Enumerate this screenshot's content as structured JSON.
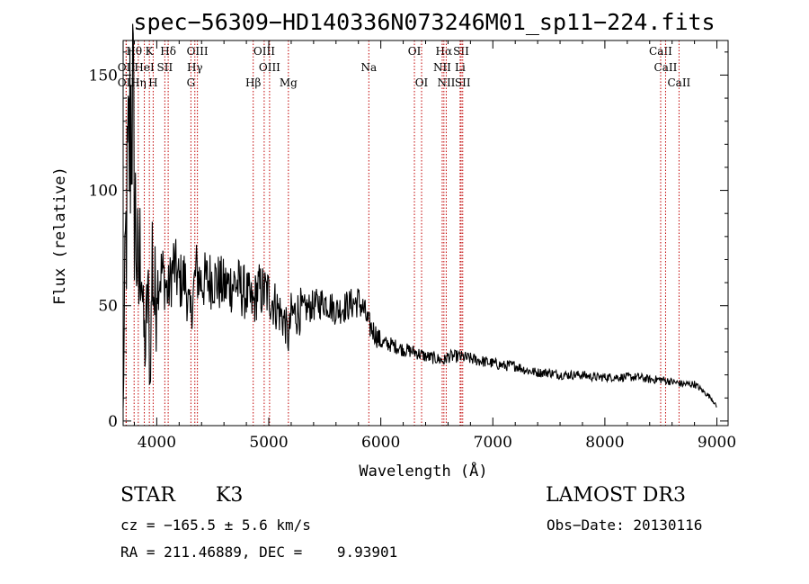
{
  "chart_data": {
    "type": "line",
    "title": "spec−56309−HD140336N073246M01_sp11−224.fits",
    "xlabel": "Wavelength (Å)",
    "ylabel": "Flux (relative)",
    "xlim": [
      3700,
      9100
    ],
    "ylim": [
      -2,
      165
    ],
    "xticks": [
      4000,
      5000,
      6000,
      7000,
      8000,
      9000
    ],
    "yticks": [
      0,
      50,
      100,
      150
    ],
    "grid": false,
    "series": [
      {
        "name": "flux",
        "x": [
          3700,
          3720,
          3740,
          3760,
          3780,
          3800,
          3820,
          3840,
          3860,
          3880,
          3900,
          3920,
          3940,
          3960,
          3980,
          4000,
          4050,
          4100,
          4150,
          4200,
          4250,
          4300,
          4350,
          4400,
          4500,
          4600,
          4700,
          4800,
          4860,
          4900,
          5000,
          5100,
          5150,
          5175,
          5200,
          5300,
          5400,
          5500,
          5600,
          5700,
          5800,
          5850,
          5890,
          5950,
          6000,
          6100,
          6200,
          6300,
          6400,
          6500,
          6563,
          6600,
          6700,
          6800,
          6900,
          7000,
          7100,
          7200,
          7300,
          7400,
          7500,
          7600,
          7700,
          7800,
          7900,
          8000,
          8100,
          8200,
          8300,
          8400,
          8500,
          8600,
          8700,
          8800,
          8850,
          8900,
          8950,
          9000
        ],
        "y": [
          5,
          70,
          100,
          125,
          145,
          100,
          75,
          55,
          85,
          40,
          30,
          60,
          15,
          72,
          50,
          60,
          65,
          55,
          68,
          60,
          62,
          45,
          65,
          60,
          62,
          58,
          60,
          55,
          50,
          57,
          55,
          47,
          42,
          35,
          46,
          48,
          50,
          52,
          48,
          50,
          52,
          48,
          42,
          38,
          34,
          33,
          31,
          30,
          28,
          27,
          26,
          28,
          28,
          27,
          26,
          25,
          24,
          24,
          22,
          21,
          21,
          20,
          20,
          20,
          19,
          19,
          19,
          19,
          19,
          18,
          18,
          17,
          16,
          16,
          14,
          12,
          10,
          6
        ]
      }
    ],
    "spectral_lines": [
      {
        "label": "Hθ",
        "wavelength": 3798,
        "row": 0
      },
      {
        "label": "K",
        "wavelength": 3934,
        "row": 0
      },
      {
        "label": "Hδ",
        "wavelength": 4102,
        "row": 0
      },
      {
        "label": "OIII",
        "wavelength": 4363,
        "row": 0
      },
      {
        "label": "OIII",
        "wavelength": 4959,
        "row": 0
      },
      {
        "label": "OI",
        "wavelength": 6300,
        "row": 0
      },
      {
        "label": "Hα",
        "wavelength": 6563,
        "row": 0
      },
      {
        "label": "SII",
        "wavelength": 6717,
        "row": 0
      },
      {
        "label": "CaII",
        "wavelength": 8498,
        "row": 0
      },
      {
        "label": "OII",
        "wavelength": 3727,
        "row": 1
      },
      {
        "label": "HeI",
        "wavelength": 3889,
        "row": 1
      },
      {
        "label": "SII",
        "wavelength": 4072,
        "row": 1
      },
      {
        "label": "Hγ",
        "wavelength": 4340,
        "row": 1
      },
      {
        "label": "OIII",
        "wavelength": 5007,
        "row": 1
      },
      {
        "label": "Na",
        "wavelength": 5893,
        "row": 1
      },
      {
        "label": "NII",
        "wavelength": 6548,
        "row": 1
      },
      {
        "label": "Li",
        "wavelength": 6708,
        "row": 1
      },
      {
        "label": "CaII",
        "wavelength": 8542,
        "row": 1
      },
      {
        "label": "OII",
        "wavelength": 3727,
        "row": 2
      },
      {
        "label": "Hη",
        "wavelength": 3835,
        "row": 2
      },
      {
        "label": "H",
        "wavelength": 3968,
        "row": 2
      },
      {
        "label": "G",
        "wavelength": 4305,
        "row": 2
      },
      {
        "label": "Hβ",
        "wavelength": 4861,
        "row": 2
      },
      {
        "label": "Mg",
        "wavelength": 5175,
        "row": 2
      },
      {
        "label": "OI",
        "wavelength": 6364,
        "row": 2
      },
      {
        "label": "NII",
        "wavelength": 6584,
        "row": 2
      },
      {
        "label": "SII",
        "wavelength": 6731,
        "row": 2
      },
      {
        "label": "CaII",
        "wavelength": 8662,
        "row": 2
      }
    ]
  },
  "info": {
    "object_class": "STAR",
    "subclass": "K3",
    "survey": "LAMOST DR3",
    "cz": "cz = −165.5 ± 5.6 km/s",
    "obs_date": "Obs−Date: 20130116",
    "coords": "RA = 211.46889, DEC =    9.93901"
  }
}
